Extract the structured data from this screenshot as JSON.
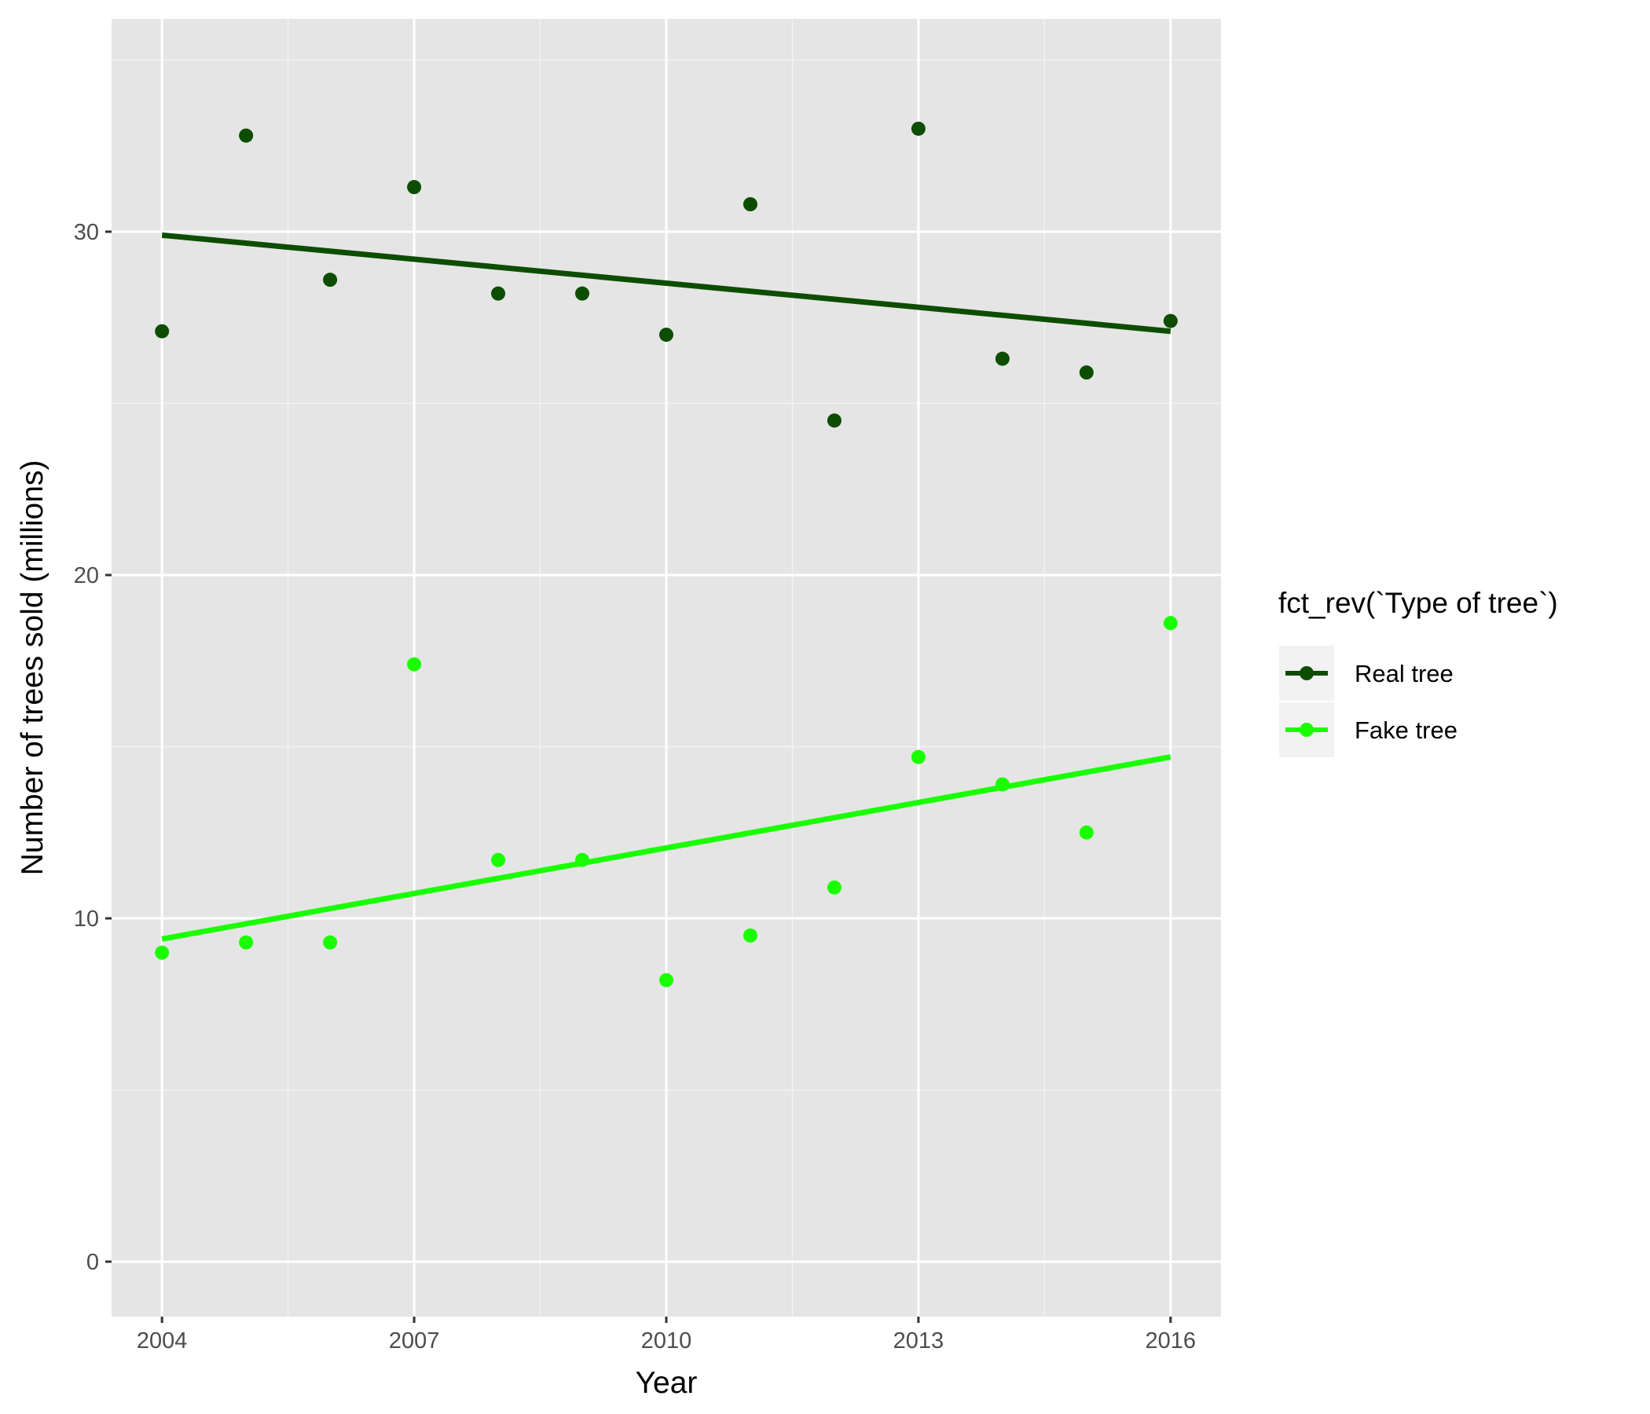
{
  "chart_data": {
    "type": "scatter",
    "xlabel": "Year",
    "ylabel": "Number of trees sold (millions)",
    "x": [
      2004,
      2005,
      2006,
      2007,
      2008,
      2009,
      2010,
      2011,
      2012,
      2013,
      2014,
      2015,
      2016
    ],
    "xticks": [
      2004,
      2007,
      2010,
      2013,
      2016
    ],
    "yticks": [
      0,
      10,
      20,
      30
    ],
    "xlim": [
      2003.4,
      2016.6
    ],
    "ylim": [
      -1.6,
      36.2
    ],
    "grid": true,
    "legend": {
      "title": "fct_rev(`Type of tree`)",
      "placement": "right"
    },
    "series": [
      {
        "name": "Real tree",
        "color": "#0d4d00",
        "values": [
          27.1,
          32.8,
          28.6,
          31.3,
          28.2,
          28.2,
          27.0,
          30.8,
          24.5,
          33.0,
          26.3,
          25.9,
          27.4
        ],
        "trend": [
          29.9,
          27.1
        ]
      },
      {
        "name": "Fake tree",
        "color": "#1aff00",
        "values": [
          9.0,
          9.3,
          9.3,
          17.4,
          11.7,
          11.7,
          8.2,
          9.5,
          10.9,
          14.7,
          13.9,
          12.5,
          18.6
        ],
        "trend": [
          9.4,
          14.7
        ]
      }
    ]
  }
}
